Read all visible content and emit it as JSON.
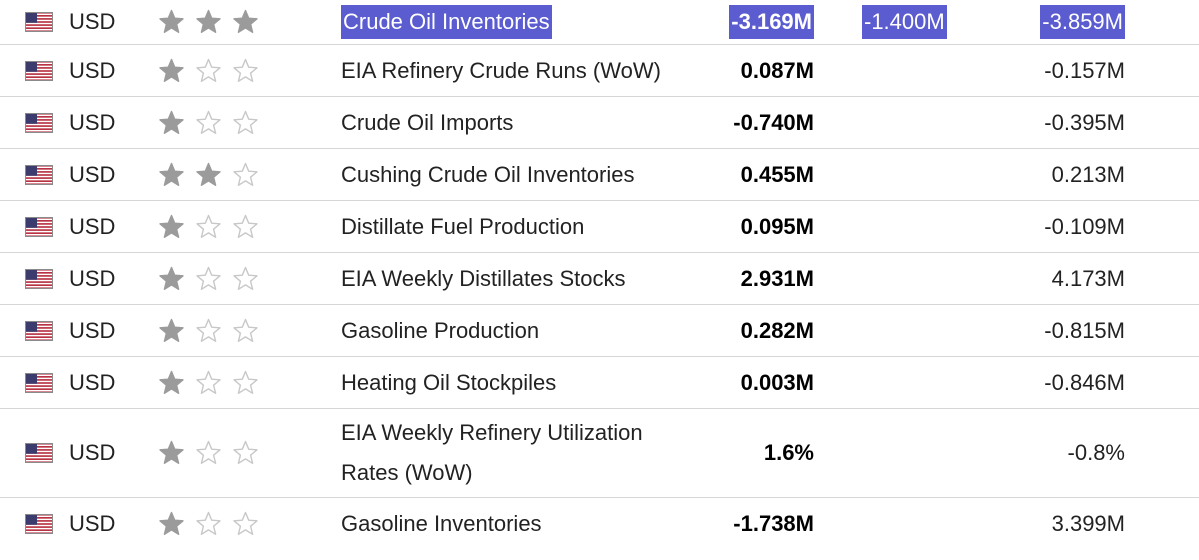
{
  "colors": {
    "selection": "#5b5ccf",
    "star_filled": "#9b9b9b",
    "star_empty": "#c8c8c8",
    "divider": "#d6d6d6"
  },
  "icons": {
    "flag": "us-flag-icon",
    "star_filled": "filled-star-icon",
    "star_empty": "empty-star-icon"
  },
  "rows": [
    {
      "currency": "USD",
      "importance": 3,
      "event": "Crude Oil Inventories",
      "actual": "-3.169M",
      "forecast": "-1.400M",
      "previous": "-3.859M",
      "selected": true
    },
    {
      "currency": "USD",
      "importance": 1,
      "event": "EIA Refinery Crude Runs (WoW)",
      "actual": "0.087M",
      "forecast": "",
      "previous": "-0.157M"
    },
    {
      "currency": "USD",
      "importance": 1,
      "event": "Crude Oil Imports",
      "actual": "-0.740M",
      "forecast": "",
      "previous": "-0.395M"
    },
    {
      "currency": "USD",
      "importance": 2,
      "event": "Cushing Crude Oil Inventories",
      "actual": "0.455M",
      "forecast": "",
      "previous": "0.213M"
    },
    {
      "currency": "USD",
      "importance": 1,
      "event": "Distillate Fuel Production",
      "actual": "0.095M",
      "forecast": "",
      "previous": "-0.109M"
    },
    {
      "currency": "USD",
      "importance": 1,
      "event": "EIA Weekly Distillates Stocks",
      "actual": "2.931M",
      "forecast": "",
      "previous": "4.173M"
    },
    {
      "currency": "USD",
      "importance": 1,
      "event": "Gasoline Production",
      "actual": "0.282M",
      "forecast": "",
      "previous": "-0.815M"
    },
    {
      "currency": "USD",
      "importance": 1,
      "event": "Heating Oil Stockpiles",
      "actual": "0.003M",
      "forecast": "",
      "previous": "-0.846M"
    },
    {
      "currency": "USD",
      "importance": 1,
      "event": "EIA Weekly Refinery Utilization Rates (WoW)",
      "actual": "1.6%",
      "forecast": "",
      "previous": "-0.8%"
    },
    {
      "currency": "USD",
      "importance": 1,
      "event": "Gasoline Inventories",
      "actual": "-1.738M",
      "forecast": "",
      "previous": "3.399M"
    }
  ]
}
